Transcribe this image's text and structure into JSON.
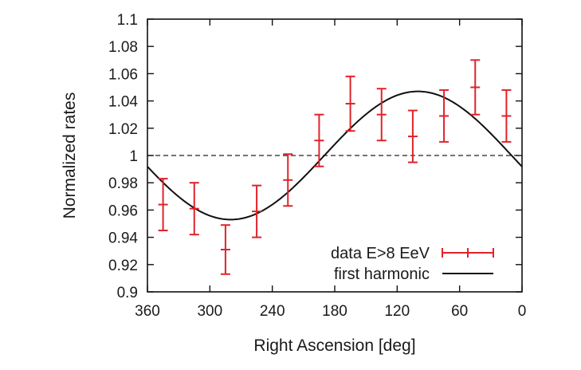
{
  "chart_data": {
    "type": "scatter",
    "title": "",
    "xlabel": "Right Ascension [deg]",
    "ylabel": "Normalized rates",
    "xlim": [
      360,
      0
    ],
    "ylim": [
      0.9,
      1.1
    ],
    "x_ticks": [
      360,
      300,
      240,
      180,
      120,
      60,
      0
    ],
    "y_ticks": [
      0.9,
      0.92,
      0.94,
      0.96,
      0.98,
      1,
      1.02,
      1.04,
      1.06,
      1.08,
      1.1
    ],
    "x_tick_labels": [
      "360",
      "300",
      "240",
      "180",
      "120",
      "60",
      "0"
    ],
    "y_tick_labels": [
      "0.9",
      "0.92",
      "0.94",
      "0.96",
      "0.98",
      "1",
      "1.02",
      "1.04",
      "1.06",
      "1.08",
      "1.1"
    ],
    "reference_line": {
      "y": 1.0,
      "style": "dashed"
    },
    "series": [
      {
        "name": "data E>8 EeV",
        "color": "#e0232a",
        "style": "errorbars",
        "x": [
          345,
          315,
          285,
          255,
          225,
          195,
          165,
          135,
          105,
          75,
          45,
          15
        ],
        "y": [
          0.964,
          0.961,
          0.931,
          0.959,
          0.982,
          1.011,
          1.038,
          1.03,
          1.014,
          1.029,
          1.05,
          1.029
        ],
        "err": [
          0.019,
          0.019,
          0.018,
          0.019,
          0.019,
          0.019,
          0.02,
          0.019,
          0.019,
          0.019,
          0.02,
          0.019
        ]
      },
      {
        "name": "first harmonic",
        "color": "#111111",
        "style": "line",
        "function": "1 + A*cos((RA - phase) deg)",
        "amplitude": 0.047,
        "phase_deg": 100
      }
    ],
    "legend": [
      "data E>8 EeV",
      "first harmonic"
    ],
    "legend_position": "bottom-right"
  }
}
